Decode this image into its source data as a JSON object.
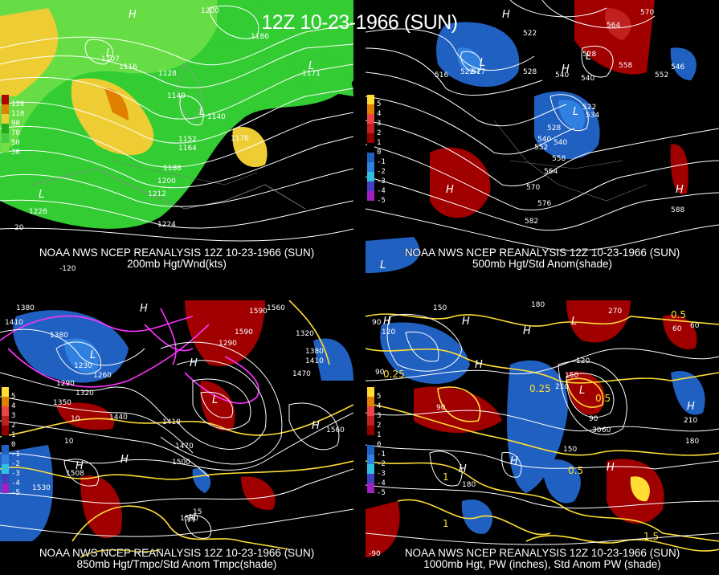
{
  "title": "12Z 10-23-1966 (SUN)",
  "colors": {
    "background": "#000000",
    "contour": "#ffffff",
    "temperature_warm": "#ff33ff",
    "temperature_cold": "#ffdd33",
    "anom_pos": "#a00000",
    "anom_neg": "#2060c0",
    "wind_light": "#33cc33",
    "wind_strong": "#eecc33"
  },
  "panels": [
    {
      "id": "p200",
      "caption_line1": "NOAA NWS NCEP REANALYSIS 12Z 10-23-1966 (SUN)",
      "caption_line2": "200mb Hgt/Wnd(kts)",
      "legend": [
        {
          "label": "130",
          "color": "#b00000"
        },
        {
          "label": "110",
          "color": "#e08000"
        },
        {
          "label": "90",
          "color": "#eecc33"
        },
        {
          "label": "70",
          "color": "#22aa22"
        },
        {
          "label": "50",
          "color": "#44cc44"
        },
        {
          "label": "30",
          "color": "#77dd44"
        }
      ],
      "labels": [
        "1200",
        "1186",
        "1107",
        "1116",
        "1128",
        "1140",
        "1171",
        "1152",
        "1164",
        "1176",
        "1188",
        "1200",
        "1212",
        "1224",
        "1228",
        "20",
        "-120",
        "1140"
      ]
    },
    {
      "id": "p500",
      "caption_line1": "NOAA NWS NCEP REANALYSIS 12Z 10-23-1966 (SUN)",
      "caption_line2": "500mb Hgt/Std Anom(shade)",
      "legend": [
        {
          "label": "5",
          "color": "#ffdd33"
        },
        {
          "label": "4",
          "color": "#e08000"
        },
        {
          "label": "3",
          "color": "#ee4444"
        },
        {
          "label": "2",
          "color": "#c02020"
        },
        {
          "label": "1",
          "color": "#900000"
        },
        {
          "label": "0",
          "color": "#000000"
        },
        {
          "label": "-1",
          "color": "#2060c0"
        },
        {
          "label": "-2",
          "color": "#3080e0"
        },
        {
          "label": "-3",
          "color": "#30c0e0"
        },
        {
          "label": "-4",
          "color": "#4040c0"
        },
        {
          "label": "-5",
          "color": "#a020c0"
        }
      ],
      "labels": [
        "516",
        "522",
        "528",
        "534",
        "540",
        "546",
        "552",
        "558",
        "564",
        "570",
        "576",
        "582",
        "588",
        "516",
        "522",
        "528",
        "540",
        "546",
        "552",
        "558",
        "564",
        "570",
        "576",
        "522",
        "528",
        "534",
        "540"
      ]
    },
    {
      "id": "p850",
      "caption_line1": "NOAA NWS NCEP REANALYSIS 12Z 10-23-1966 (SUN)",
      "caption_line2": "850mb Hgt/Tmpc/Std Anom Tmpc(shade)",
      "legend": [
        {
          "label": "5",
          "color": "#ffdd33"
        },
        {
          "label": "4",
          "color": "#e08000"
        },
        {
          "label": "3",
          "color": "#ee4444"
        },
        {
          "label": "2",
          "color": "#c02020"
        },
        {
          "label": "1",
          "color": "#900000"
        },
        {
          "label": "0",
          "color": "#000000"
        },
        {
          "label": "-1",
          "color": "#2060c0"
        },
        {
          "label": "-2",
          "color": "#3080e0"
        },
        {
          "label": "-3",
          "color": "#30c0e0"
        },
        {
          "label": "-4",
          "color": "#4040c0"
        },
        {
          "label": "-5",
          "color": "#a020c0"
        }
      ],
      "labels": [
        "1380",
        "1410",
        "1380",
        "1230",
        "1260",
        "1290",
        "1320",
        "1350",
        "1440",
        "1410",
        "1470",
        "1500",
        "1530",
        "1560",
        "1590",
        "1560",
        "1290",
        "1320",
        "1380",
        "1410",
        "1470",
        "1508",
        "1530",
        "10",
        "15",
        "10",
        "1590"
      ]
    },
    {
      "id": "psfc",
      "caption_line1": "NOAA NWS NCEP REANALYSIS 12Z 10-23-1966 (SUN)",
      "caption_line2": "1000mb Hgt, PW (inches), Std Anom PW (shade)",
      "legend": [
        {
          "label": "5",
          "color": "#ffdd33"
        },
        {
          "label": "4",
          "color": "#e08000"
        },
        {
          "label": "3",
          "color": "#ee4444"
        },
        {
          "label": "2",
          "color": "#c02020"
        },
        {
          "label": "1",
          "color": "#900000"
        },
        {
          "label": "0",
          "color": "#000000"
        },
        {
          "label": "-1",
          "color": "#2060c0"
        },
        {
          "label": "-2",
          "color": "#3080e0"
        },
        {
          "label": "-3",
          "color": "#30c0e0"
        },
        {
          "label": "-4",
          "color": "#4040c0"
        },
        {
          "label": "-5",
          "color": "#a020c0"
        }
      ],
      "labels": [
        "90",
        "120",
        "150",
        "180",
        "210",
        "180",
        "150",
        "120",
        "90",
        "60",
        "30",
        "60",
        "0.25",
        "0.5",
        "1",
        "1.5",
        "0.25",
        "0.5",
        "1",
        "-90",
        "270",
        "210",
        "180"
      ]
    }
  ]
}
